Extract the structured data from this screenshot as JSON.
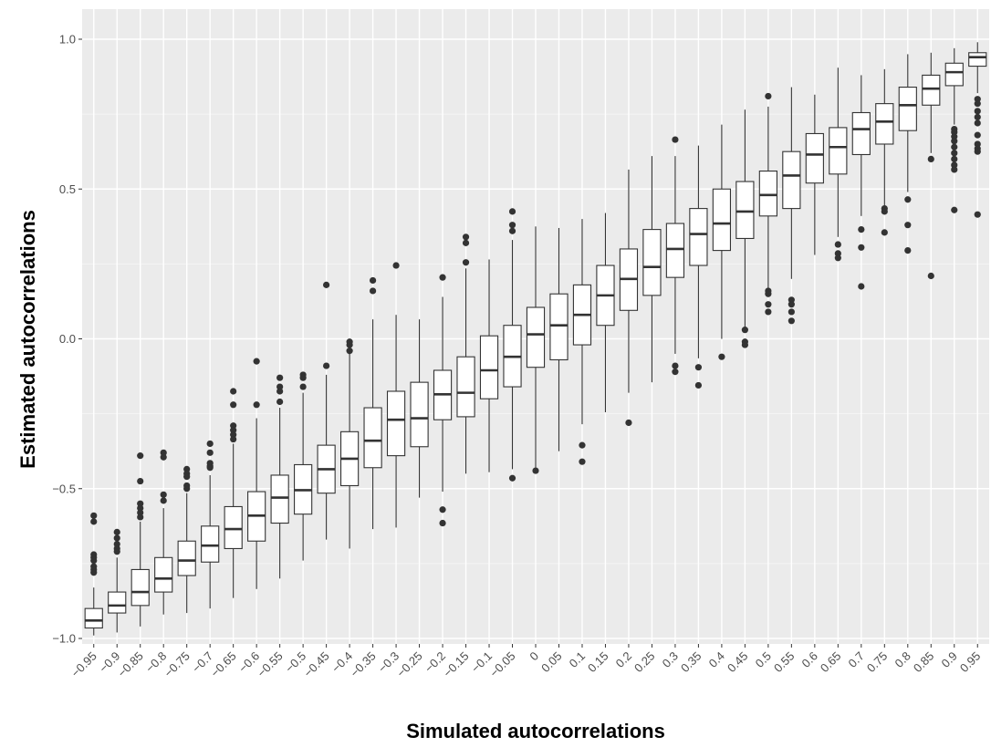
{
  "chart_data": {
    "type": "box",
    "title": "",
    "xlabel": "Simulated autocorrelations",
    "ylabel": "Estimated autocorrelations",
    "ylim": [
      -1.08,
      1.0
    ],
    "y_ticks": [
      {
        "value": 1.0,
        "label": "1.0"
      },
      {
        "value": 0.5,
        "label": "0.5"
      },
      {
        "value": 0.0,
        "label": "0.0"
      },
      {
        "value": -0.5,
        "label": "-0.5"
      },
      {
        "value": -1.0,
        "label": "-1.0"
      }
    ],
    "grid": true,
    "colors": {
      "panel": "#ebebeb",
      "grid_major": "#ffffff",
      "box_line": "#333333",
      "box_fill": "#ffffff",
      "outlier": "#333333"
    },
    "categories": [
      "-0.95",
      "-0.9",
      "-0.85",
      "-0.8",
      "-0.75",
      "-0.7",
      "-0.65",
      "-0.6",
      "-0.55",
      "-0.5",
      "-0.45",
      "-0.4",
      "-0.35",
      "-0.3",
      "-0.25",
      "-0.2",
      "-0.15",
      "-0.1",
      "-0.05",
      "0",
      "0.05",
      "0.1",
      "0.15",
      "0.2",
      "0.25",
      "0.3",
      "0.35",
      "0.4",
      "0.45",
      "0.5",
      "0.55",
      "0.6",
      "0.65",
      "0.7",
      "0.75",
      "0.8",
      "0.85",
      "0.9",
      "0.95"
    ],
    "boxes": [
      {
        "x": "-0.95",
        "whisker_low": -0.99,
        "q1": -0.965,
        "median": -0.94,
        "q3": -0.9,
        "whisker_high": -0.83,
        "outliers": [
          -0.59,
          -0.61,
          -0.72,
          -0.73,
          -0.74,
          -0.76,
          -0.77,
          -0.78
        ]
      },
      {
        "x": "-0.9",
        "whisker_low": -0.98,
        "q1": -0.915,
        "median": -0.89,
        "q3": -0.845,
        "whisker_high": -0.73,
        "outliers": [
          -0.645,
          -0.665,
          -0.685,
          -0.7,
          -0.71
        ]
      },
      {
        "x": "-0.85",
        "whisker_low": -0.96,
        "q1": -0.89,
        "median": -0.845,
        "q3": -0.77,
        "whisker_high": -0.61,
        "outliers": [
          -0.39,
          -0.475,
          -0.55,
          -0.565,
          -0.58,
          -0.595
        ]
      },
      {
        "x": "-0.8",
        "whisker_low": -0.92,
        "q1": -0.845,
        "median": -0.8,
        "q3": -0.73,
        "whisker_high": -0.565,
        "outliers": [
          -0.38,
          -0.395,
          -0.52,
          -0.54
        ]
      },
      {
        "x": "-0.75",
        "whisker_low": -0.915,
        "q1": -0.79,
        "median": -0.74,
        "q3": -0.675,
        "whisker_high": -0.515,
        "outliers": [
          -0.435,
          -0.45,
          -0.46,
          -0.49,
          -0.5
        ]
      },
      {
        "x": "-0.7",
        "whisker_low": -0.9,
        "q1": -0.745,
        "median": -0.69,
        "q3": -0.625,
        "whisker_high": -0.455,
        "outliers": [
          -0.35,
          -0.38,
          -0.415,
          -0.425,
          -0.43
        ]
      },
      {
        "x": "-0.65",
        "whisker_low": -0.865,
        "q1": -0.7,
        "median": -0.635,
        "q3": -0.56,
        "whisker_high": -0.35,
        "outliers": [
          -0.175,
          -0.22,
          -0.29,
          -0.305,
          -0.32,
          -0.335
        ]
      },
      {
        "x": "-0.6",
        "whisker_low": -0.835,
        "q1": -0.675,
        "median": -0.59,
        "q3": -0.51,
        "whisker_high": -0.265,
        "outliers": [
          -0.075,
          -0.22
        ]
      },
      {
        "x": "-0.55",
        "whisker_low": -0.8,
        "q1": -0.615,
        "median": -0.53,
        "q3": -0.455,
        "whisker_high": -0.23,
        "outliers": [
          -0.13,
          -0.16,
          -0.175,
          -0.21
        ]
      },
      {
        "x": "-0.5",
        "whisker_low": -0.74,
        "q1": -0.585,
        "median": -0.505,
        "q3": -0.42,
        "whisker_high": -0.18,
        "outliers": [
          -0.12,
          -0.13,
          -0.16
        ]
      },
      {
        "x": "-0.45",
        "whisker_low": -0.67,
        "q1": -0.515,
        "median": -0.435,
        "q3": -0.355,
        "whisker_high": -0.12,
        "outliers": [
          0.18,
          -0.09
        ]
      },
      {
        "x": "-0.4",
        "whisker_low": -0.7,
        "q1": -0.49,
        "median": -0.4,
        "q3": -0.31,
        "whisker_high": -0.045,
        "outliers": [
          -0.01,
          -0.02,
          -0.04
        ]
      },
      {
        "x": "-0.35",
        "whisker_low": -0.635,
        "q1": -0.43,
        "median": -0.34,
        "q3": -0.23,
        "whisker_high": 0.065,
        "outliers": [
          0.195,
          0.16
        ]
      },
      {
        "x": "-0.3",
        "whisker_low": -0.63,
        "q1": -0.39,
        "median": -0.27,
        "q3": -0.175,
        "whisker_high": 0.08,
        "outliers": [
          0.245
        ]
      },
      {
        "x": "-0.25",
        "whisker_low": -0.53,
        "q1": -0.36,
        "median": -0.265,
        "q3": -0.145,
        "whisker_high": 0.065,
        "outliers": []
      },
      {
        "x": "-0.2",
        "whisker_low": -0.51,
        "q1": -0.27,
        "median": -0.185,
        "q3": -0.105,
        "whisker_high": 0.14,
        "outliers": [
          0.205,
          -0.57,
          -0.615
        ]
      },
      {
        "x": "-0.15",
        "whisker_low": -0.45,
        "q1": -0.26,
        "median": -0.18,
        "q3": -0.06,
        "whisker_high": 0.235,
        "outliers": [
          0.34,
          0.32,
          0.255
        ]
      },
      {
        "x": "-0.1",
        "whisker_low": -0.445,
        "q1": -0.2,
        "median": -0.105,
        "q3": 0.01,
        "whisker_high": 0.265,
        "outliers": []
      },
      {
        "x": "-0.05",
        "whisker_low": -0.435,
        "q1": -0.16,
        "median": -0.06,
        "q3": 0.045,
        "whisker_high": 0.33,
        "outliers": [
          0.425,
          0.38,
          0.36,
          -0.465
        ]
      },
      {
        "x": "0",
        "whisker_low": -0.43,
        "q1": -0.095,
        "median": 0.015,
        "q3": 0.105,
        "whisker_high": 0.375,
        "outliers": [
          -0.44
        ]
      },
      {
        "x": "0.05",
        "whisker_low": -0.375,
        "q1": -0.07,
        "median": 0.045,
        "q3": 0.15,
        "whisker_high": 0.37,
        "outliers": []
      },
      {
        "x": "0.1",
        "whisker_low": -0.285,
        "q1": -0.02,
        "median": 0.08,
        "q3": 0.18,
        "whisker_high": 0.4,
        "outliers": [
          -0.355,
          -0.41
        ]
      },
      {
        "x": "0.15",
        "whisker_low": -0.245,
        "q1": 0.045,
        "median": 0.145,
        "q3": 0.245,
        "whisker_high": 0.42,
        "outliers": []
      },
      {
        "x": "0.2",
        "whisker_low": -0.18,
        "q1": 0.095,
        "median": 0.2,
        "q3": 0.3,
        "whisker_high": 0.565,
        "outliers": [
          -0.28
        ]
      },
      {
        "x": "0.25",
        "whisker_low": -0.145,
        "q1": 0.145,
        "median": 0.24,
        "q3": 0.365,
        "whisker_high": 0.61,
        "outliers": []
      },
      {
        "x": "0.3",
        "whisker_low": -0.05,
        "q1": 0.205,
        "median": 0.3,
        "q3": 0.385,
        "whisker_high": 0.61,
        "outliers": [
          0.665,
          -0.09,
          -0.11
        ]
      },
      {
        "x": "0.35",
        "whisker_low": -0.065,
        "q1": 0.245,
        "median": 0.35,
        "q3": 0.435,
        "whisker_high": 0.645,
        "outliers": [
          -0.095,
          -0.155
        ]
      },
      {
        "x": "0.4",
        "whisker_low": 0.0,
        "q1": 0.295,
        "median": 0.385,
        "q3": 0.5,
        "whisker_high": 0.715,
        "outliers": [
          -0.06
        ]
      },
      {
        "x": "0.45",
        "whisker_low": 0.04,
        "q1": 0.335,
        "median": 0.425,
        "q3": 0.525,
        "whisker_high": 0.765,
        "outliers": [
          0.03,
          -0.01,
          -0.02
        ]
      },
      {
        "x": "0.5",
        "whisker_low": 0.17,
        "q1": 0.41,
        "median": 0.48,
        "q3": 0.56,
        "whisker_high": 0.775,
        "outliers": [
          0.81,
          0.16,
          0.15,
          0.115,
          0.09
        ]
      },
      {
        "x": "0.55",
        "whisker_low": 0.2,
        "q1": 0.435,
        "median": 0.545,
        "q3": 0.625,
        "whisker_high": 0.84,
        "outliers": [
          0.13,
          0.115,
          0.09,
          0.06
        ]
      },
      {
        "x": "0.6",
        "whisker_low": 0.28,
        "q1": 0.52,
        "median": 0.615,
        "q3": 0.685,
        "whisker_high": 0.815,
        "outliers": []
      },
      {
        "x": "0.65",
        "whisker_low": 0.34,
        "q1": 0.55,
        "median": 0.64,
        "q3": 0.705,
        "whisker_high": 0.905,
        "outliers": [
          0.315,
          0.285,
          0.27
        ]
      },
      {
        "x": "0.7",
        "whisker_low": 0.41,
        "q1": 0.615,
        "median": 0.7,
        "q3": 0.755,
        "whisker_high": 0.88,
        "outliers": [
          0.365,
          0.305,
          0.175
        ]
      },
      {
        "x": "0.75",
        "whisker_low": 0.445,
        "q1": 0.65,
        "median": 0.725,
        "q3": 0.785,
        "whisker_high": 0.9,
        "outliers": [
          0.435,
          0.425,
          0.355
        ]
      },
      {
        "x": "0.8",
        "whisker_low": 0.49,
        "q1": 0.695,
        "median": 0.78,
        "q3": 0.84,
        "whisker_high": 0.95,
        "outliers": [
          0.465,
          0.38,
          0.295
        ]
      },
      {
        "x": "0.85",
        "whisker_low": 0.62,
        "q1": 0.78,
        "median": 0.835,
        "q3": 0.88,
        "whisker_high": 0.955,
        "outliers": [
          0.6,
          0.21
        ]
      },
      {
        "x": "0.9",
        "whisker_low": 0.715,
        "q1": 0.845,
        "median": 0.89,
        "q3": 0.92,
        "whisker_high": 0.97,
        "outliers": [
          0.7,
          0.69,
          0.675,
          0.66,
          0.64,
          0.62,
          0.6,
          0.58,
          0.565,
          0.43
        ]
      },
      {
        "x": "0.95",
        "whisker_low": 0.82,
        "q1": 0.91,
        "median": 0.94,
        "q3": 0.955,
        "whisker_high": 0.99,
        "outliers": [
          0.8,
          0.785,
          0.76,
          0.74,
          0.72,
          0.68,
          0.65,
          0.635,
          0.625,
          0.415
        ]
      }
    ]
  }
}
